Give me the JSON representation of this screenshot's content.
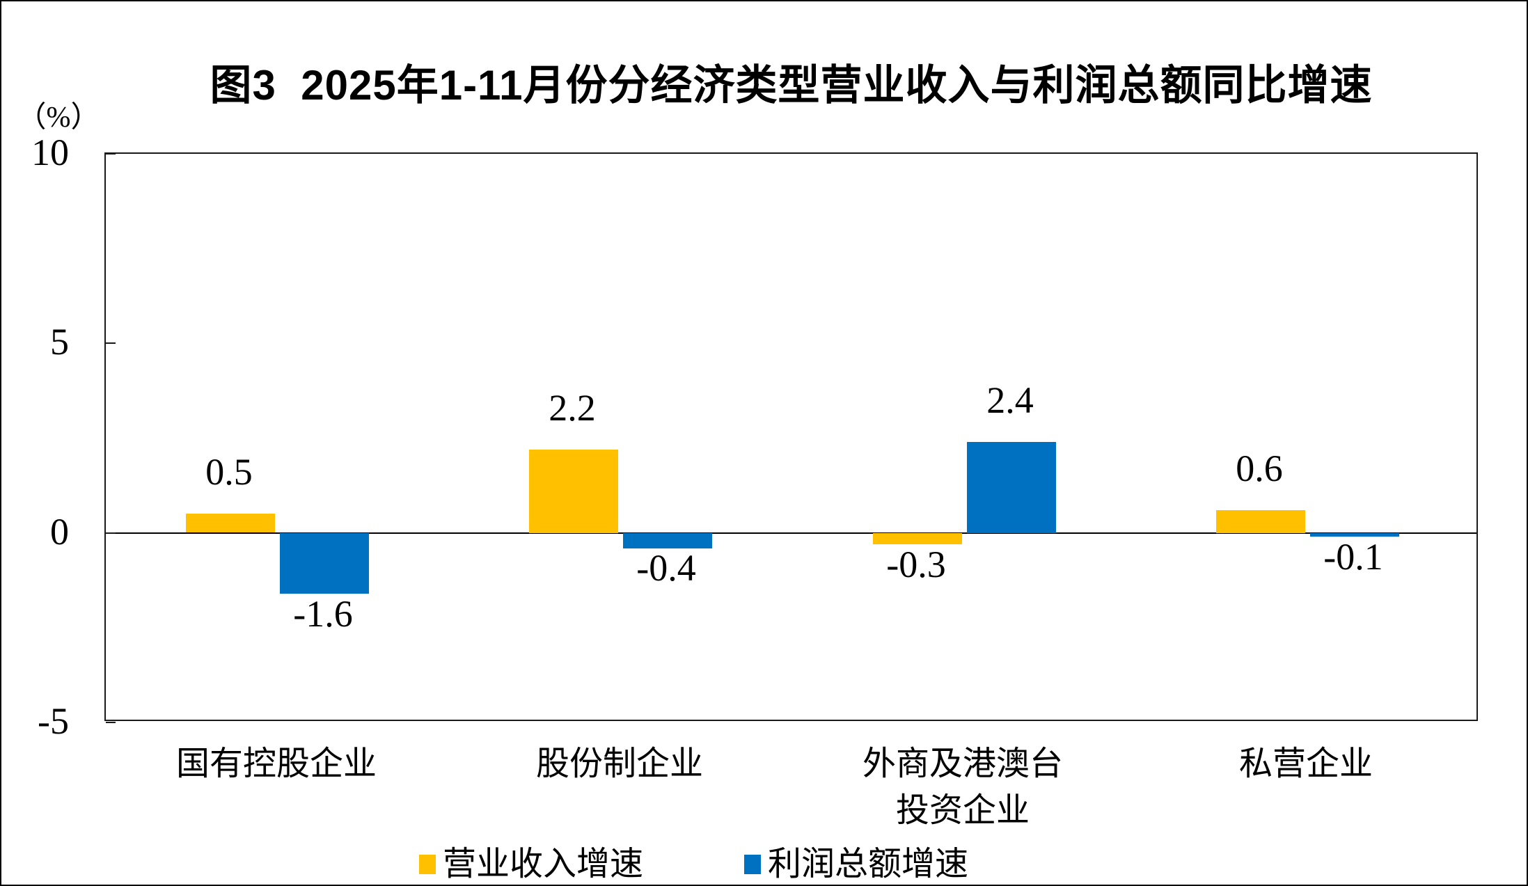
{
  "title": "图3  2025年1-11月份分经济类型营业收入与利润总额同比增速",
  "y_axis_unit": "（%）",
  "chart_data": {
    "type": "bar",
    "categories": [
      "国有控股企业",
      "股份制企业",
      "外商及港澳台\n投资企业",
      "私营企业"
    ],
    "series": [
      {
        "name": "营业收入增速",
        "color": "#FFC000",
        "values": [
          0.5,
          2.2,
          -0.3,
          0.6
        ],
        "labels": [
          "0.5",
          "2.2",
          "-0.3",
          "0.6"
        ]
      },
      {
        "name": "利润总额增速",
        "color": "#0070C0",
        "values": [
          -1.6,
          -0.4,
          2.4,
          -0.1
        ],
        "labels": [
          "-1.6",
          "-0.4",
          "2.4",
          "-0.1"
        ]
      }
    ],
    "title": "图3  2025年1-11月份分经济类型营业收入与利润总额同比增速",
    "xlabel": "",
    "ylabel": "（%）",
    "ylim": [
      -5,
      10
    ],
    "yticks": [
      10,
      5,
      0,
      -5
    ],
    "ytick_labels": [
      "10",
      "5",
      "0",
      "-5"
    ],
    "grid": false,
    "legend_position": "bottom",
    "zero_line": true,
    "axis_color": "#000000",
    "background_color": "#FFFFFF"
  }
}
